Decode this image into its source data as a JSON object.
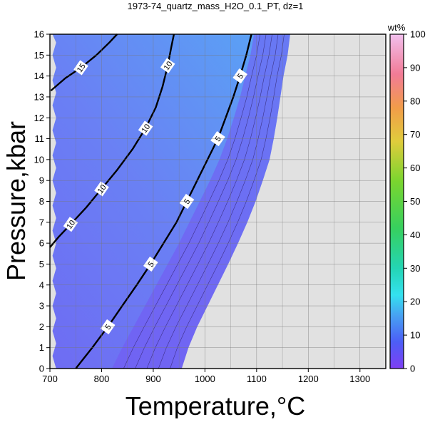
{
  "chart_data": {
    "type": "heatmap",
    "title": "1973-74_quartz_mass_H2O_0.1_PT, dz=1",
    "xlabel": "Temperature,°C",
    "ylabel": "Pressure,kbar",
    "xlim": [
      700,
      1350
    ],
    "ylim": [
      0,
      16
    ],
    "xticks": [
      700,
      800,
      900,
      1000,
      1100,
      1200,
      1300
    ],
    "yticks": [
      0,
      1,
      2,
      3,
      4,
      5,
      6,
      7,
      8,
      9,
      10,
      11,
      12,
      13,
      14,
      15,
      16
    ],
    "grid": true,
    "colorbar": {
      "label": "wt%",
      "range": [
        0,
        100
      ],
      "ticks": [
        0,
        10,
        20,
        30,
        40,
        50,
        60,
        70,
        80,
        90,
        100
      ]
    },
    "field_colors": {
      "low": "#6e6cf3",
      "mid": "#6a86f3",
      "high": "#58a6f5",
      "no_data": "#e1e1e1"
    },
    "contours": [
      {
        "level": 15,
        "label": "15",
        "points": [
          [
            702,
            13.3
          ],
          [
            730,
            13.9
          ],
          [
            760,
            14.4
          ],
          [
            790,
            15.0
          ],
          [
            815,
            15.6
          ],
          [
            830,
            16.0
          ]
        ]
      },
      {
        "level": 10,
        "label": "10",
        "points": [
          [
            940,
            16.0
          ],
          [
            935,
            15.4
          ],
          [
            928,
            14.5
          ],
          [
            918,
            13.5
          ],
          [
            905,
            12.5
          ],
          [
            885,
            11.5
          ],
          [
            860,
            10.5
          ],
          [
            830,
            9.5
          ],
          [
            800,
            8.6
          ],
          [
            770,
            7.7
          ],
          [
            740,
            6.9
          ],
          [
            717,
            6.3
          ],
          [
            700,
            5.8
          ]
        ]
      },
      {
        "level": 5,
        "label": "5",
        "points": [
          [
            1090,
            16.0
          ],
          [
            1080,
            15.0
          ],
          [
            1068,
            14.0
          ],
          [
            1055,
            13.0
          ],
          [
            1040,
            12.0
          ],
          [
            1025,
            11.0
          ],
          [
            1005,
            10.0
          ],
          [
            985,
            9.0
          ],
          [
            965,
            8.0
          ],
          [
            945,
            7.0
          ],
          [
            920,
            6.0
          ],
          [
            895,
            5.0
          ],
          [
            868,
            4.0
          ],
          [
            840,
            3.0
          ],
          [
            812,
            2.0
          ],
          [
            782,
            1.0
          ],
          [
            750,
            0.0
          ]
        ]
      }
    ]
  }
}
